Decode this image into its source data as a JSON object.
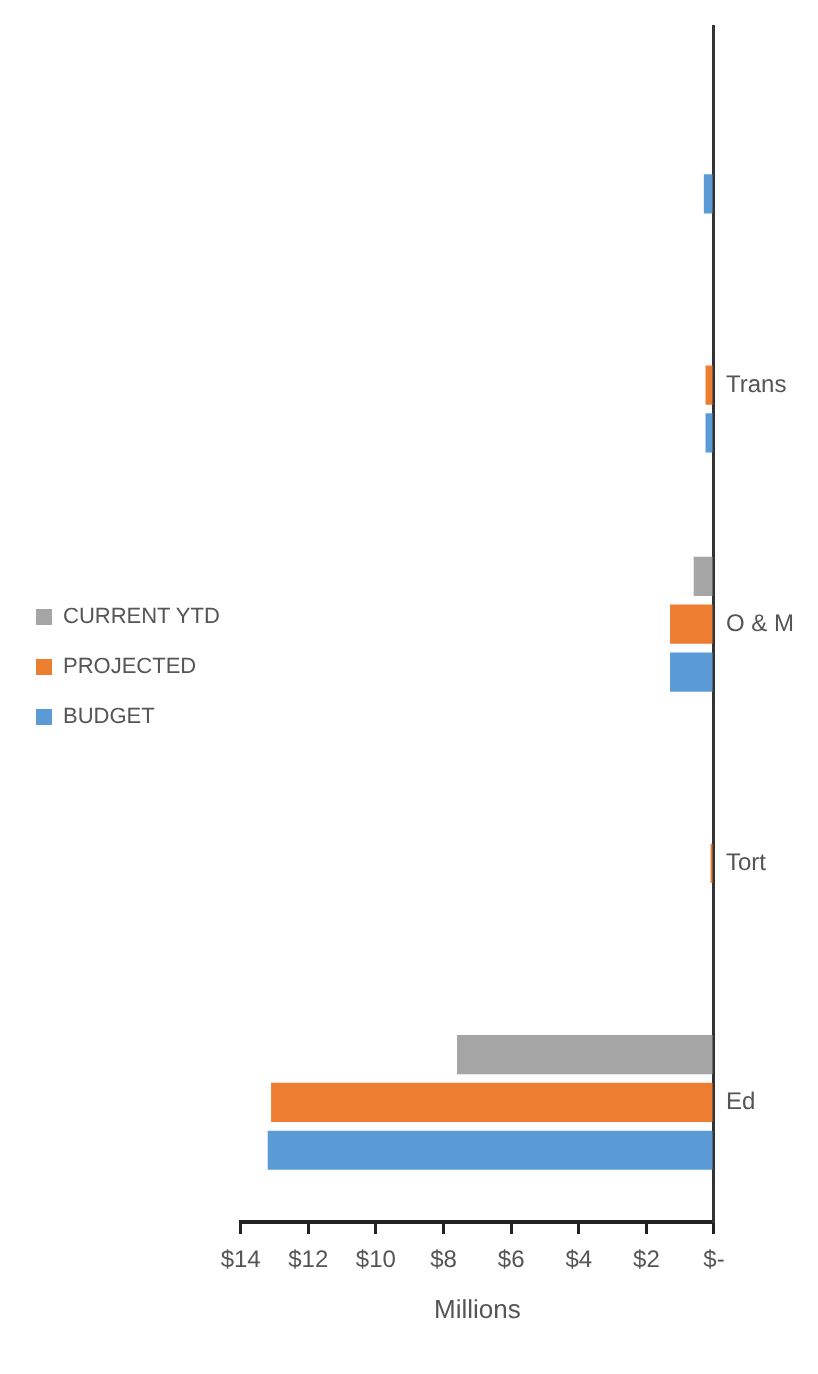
{
  "chart_data": {
    "type": "bar",
    "orientation": "horizontal",
    "xlabel": "Millions",
    "categories": [
      null,
      "Trans",
      "O & M",
      "Tort",
      "Ed"
    ],
    "series": [
      {
        "name": "CURRENT YTD",
        "color": "#a5a5a5",
        "values": [
          null,
          null,
          0.6,
          null,
          7.6
        ]
      },
      {
        "name": "PROJECTED",
        "color": "#ed7d31",
        "values": [
          null,
          0.25,
          1.3,
          0.1,
          13.1
        ]
      },
      {
        "name": "BUDGET",
        "color": "#5b9bd5",
        "values": [
          0.3,
          0.25,
          1.3,
          null,
          13.2
        ]
      }
    ],
    "xlim": [
      14,
      0
    ],
    "xticks": [
      {
        "value": 14,
        "label": "$14"
      },
      {
        "value": 12,
        "label": "$12"
      },
      {
        "value": 10,
        "label": "$10"
      },
      {
        "value": 8,
        "label": "$8"
      },
      {
        "value": 6,
        "label": "$6"
      },
      {
        "value": 4,
        "label": "$4"
      },
      {
        "value": 2,
        "label": "$2"
      },
      {
        "value": 0,
        "label": "$-"
      }
    ],
    "grid": false,
    "legend": "left"
  }
}
